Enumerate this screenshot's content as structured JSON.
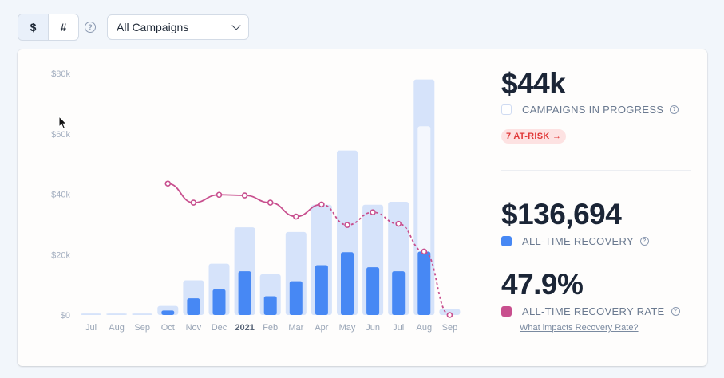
{
  "toolbar": {
    "currency_label": "$",
    "count_label": "#",
    "help_symbol": "?",
    "campaign_select": "All Campaigns"
  },
  "stats": {
    "in_progress": {
      "value": "$44k",
      "label": "CAMPAIGNS IN PROGRESS",
      "color": "#ffffff",
      "border": "#cfdbf2"
    },
    "at_risk": "7 AT-RISK →",
    "recovery": {
      "value": "$136,694",
      "label": "ALL-TIME RECOVERY",
      "color": "#4788f4"
    },
    "rate": {
      "value": "47.9%",
      "label": "ALL-TIME RECOVERY RATE",
      "color": "#c84f8e"
    },
    "help_link": "What impacts Recovery Rate?"
  },
  "chart_data": {
    "type": "bar",
    "categories": [
      "Jul",
      "Aug",
      "Sep",
      "Oct",
      "Nov",
      "Dec",
      "2021",
      "Feb",
      "Mar",
      "Apr",
      "May",
      "Jun",
      "Jul",
      "Aug",
      "Sep"
    ],
    "bold_categories": [
      "2021"
    ],
    "y_ticks": [
      "$0",
      "$20k",
      "$40k",
      "$60k",
      "$80k"
    ],
    "ylim": [
      0,
      80000
    ],
    "grid": false,
    "series": [
      {
        "name": "CAMPAIGNS IN PROGRESS",
        "values": [
          500,
          500,
          500,
          3000,
          11500,
          17000,
          29000,
          13500,
          27500,
          36500,
          54500,
          36500,
          37500,
          78000,
          2000
        ],
        "color": "#d6e3fa",
        "kind": "bar"
      },
      {
        "name": "ALL-TIME RECOVERY",
        "values": [
          0,
          0,
          0,
          1500,
          5500,
          8500,
          14500,
          6200,
          11200,
          16500,
          20800,
          15800,
          14500,
          21000,
          0
        ],
        "color": "#4788f4",
        "kind": "bar"
      },
      {
        "name": "ALL-TIME RECOVERY RATE",
        "values": [
          null,
          null,
          null,
          43.5,
          37.2,
          39.8,
          39.6,
          37.2,
          32.6,
          36.6,
          29.8,
          34.0,
          30.2,
          21.0,
          0
        ],
        "color": "#c84f8e",
        "kind": "line",
        "solid_through_index": 9
      }
    ],
    "in_progress_highlight_index": 13,
    "in_progress_highlight_value": 62500
  }
}
